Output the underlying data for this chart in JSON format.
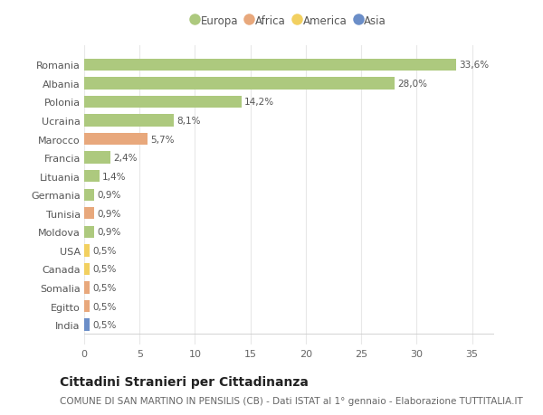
{
  "title": "Cittadini Stranieri per Cittadinanza",
  "subtitle": "COMUNE DI SAN MARTINO IN PENSILIS (CB) - Dati ISTAT al 1° gennaio - Elaborazione TUTTITALIA.IT",
  "categories": [
    "Romania",
    "Albania",
    "Polonia",
    "Ucraina",
    "Marocco",
    "Francia",
    "Lituania",
    "Germania",
    "Tunisia",
    "Moldova",
    "USA",
    "Canada",
    "Somalia",
    "Egitto",
    "India"
  ],
  "values": [
    33.6,
    28.0,
    14.2,
    8.1,
    5.7,
    2.4,
    1.4,
    0.9,
    0.9,
    0.9,
    0.5,
    0.5,
    0.5,
    0.5,
    0.5
  ],
  "labels": [
    "33,6%",
    "28,0%",
    "14,2%",
    "8,1%",
    "5,7%",
    "2,4%",
    "1,4%",
    "0,9%",
    "0,9%",
    "0,9%",
    "0,5%",
    "0,5%",
    "0,5%",
    "0,5%",
    "0,5%"
  ],
  "colors": [
    "#adc97e",
    "#adc97e",
    "#adc97e",
    "#adc97e",
    "#e8a87c",
    "#adc97e",
    "#adc97e",
    "#adc97e",
    "#e8a87c",
    "#adc97e",
    "#f2d060",
    "#f2d060",
    "#e8a87c",
    "#e8a87c",
    "#6b8ec8"
  ],
  "legend_labels": [
    "Europa",
    "Africa",
    "America",
    "Asia"
  ],
  "legend_colors": [
    "#adc97e",
    "#e8a87c",
    "#f2d060",
    "#6b8ec8"
  ],
  "xlim": [
    0,
    37
  ],
  "xticks": [
    0,
    5,
    10,
    15,
    20,
    25,
    30,
    35
  ],
  "bg_color": "#ffffff",
  "grid_color": "#e8e8e8",
  "bar_height": 0.65,
  "title_fontsize": 10,
  "subtitle_fontsize": 7.5,
  "label_fontsize": 7.5,
  "tick_fontsize": 8,
  "legend_fontsize": 8.5
}
